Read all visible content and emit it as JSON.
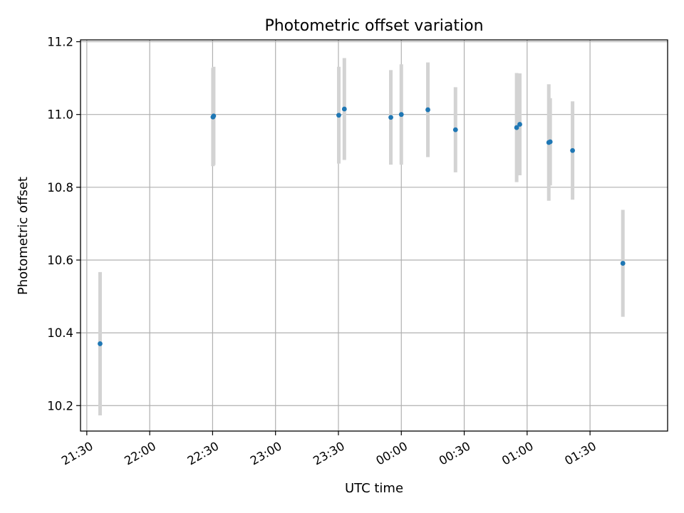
{
  "chart_data": {
    "type": "scatter",
    "title": "Photometric offset variation",
    "xlabel": "UTC time",
    "ylabel": "Photometric offset",
    "x_unit": "minutes",
    "xlim": [
      "2023-01-01T21:27",
      "2023-01-02T02:07"
    ],
    "ylim": [
      10.13,
      11.205
    ],
    "xticks": [
      {
        "t": "2023-01-01T21:30",
        "label": "21:30"
      },
      {
        "t": "2023-01-01T22:00",
        "label": "22:00"
      },
      {
        "t": "2023-01-01T22:30",
        "label": "22:30"
      },
      {
        "t": "2023-01-01T23:00",
        "label": "23:00"
      },
      {
        "t": "2023-01-01T23:30",
        "label": "23:30"
      },
      {
        "t": "2023-01-02T00:00",
        "label": "00:00"
      },
      {
        "t": "2023-01-02T00:30",
        "label": "00:30"
      },
      {
        "t": "2023-01-02T01:00",
        "label": "01:00"
      },
      {
        "t": "2023-01-02T01:30",
        "label": "01:30"
      }
    ],
    "yticks": [
      10.2,
      10.4,
      10.6,
      10.8,
      11.0,
      11.2
    ],
    "ytick_labels": [
      "10.2",
      "10.4",
      "10.6",
      "10.8",
      "11.0",
      "11.2"
    ],
    "grid": true,
    "marker_color": "#1f77b4",
    "errorbar_color": "#d3d3d3",
    "points": [
      {
        "t": "2023-01-01T21:36:20",
        "y": 10.37,
        "err": 0.197
      },
      {
        "t": "2023-01-01T22:30:10",
        "y": 10.993,
        "err": 0.135
      },
      {
        "t": "2023-01-01T22:30:30",
        "y": 10.996,
        "err": 0.135
      },
      {
        "t": "2023-01-01T23:30:10",
        "y": 10.998,
        "err": 0.133
      },
      {
        "t": "2023-01-01T23:32:50",
        "y": 11.015,
        "err": 0.14
      },
      {
        "t": "2023-01-01T23:55:00",
        "y": 10.992,
        "err": 0.13
      },
      {
        "t": "2023-01-02T00:00:00",
        "y": 11.0,
        "err": 0.138
      },
      {
        "t": "2023-01-02T00:12:40",
        "y": 11.013,
        "err": 0.13
      },
      {
        "t": "2023-01-02T00:25:50",
        "y": 10.958,
        "err": 0.117
      },
      {
        "t": "2023-01-02T00:55:00",
        "y": 10.964,
        "err": 0.15
      },
      {
        "t": "2023-01-02T00:56:30",
        "y": 10.973,
        "err": 0.14
      },
      {
        "t": "2023-01-02T01:10:20",
        "y": 10.923,
        "err": 0.16
      },
      {
        "t": "2023-01-02T01:11:00",
        "y": 10.925,
        "err": 0.12
      },
      {
        "t": "2023-01-02T01:21:40",
        "y": 10.901,
        "err": 0.135
      },
      {
        "t": "2023-01-02T01:45:40",
        "y": 10.591,
        "err": 0.147
      }
    ]
  }
}
